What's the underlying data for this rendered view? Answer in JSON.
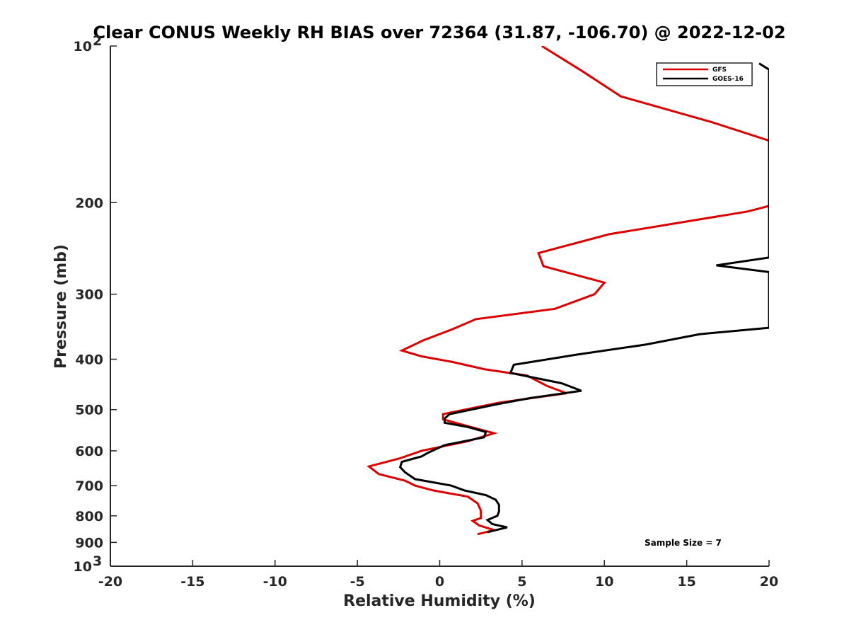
{
  "chart_data": {
    "type": "line",
    "title": "Clear CONUS Weekly RH BIAS over 72364 (31.87, -106.70) @ 2022-12-02",
    "xlabel": "Relative Humidity (%)",
    "ylabel": "Pressure (mb)",
    "xlim": [
      -20,
      20
    ],
    "ylim": [
      100,
      1000
    ],
    "y_scale": "log",
    "y_reversed": true,
    "x_ticks": [
      "-20",
      "-15",
      "-10",
      "-5",
      "0",
      "5",
      "10",
      "15",
      "20"
    ],
    "y_ticks": [
      {
        "value": 100,
        "base": "10",
        "exp": "2"
      },
      {
        "value": 200,
        "label": "200"
      },
      {
        "value": 300,
        "label": "300"
      },
      {
        "value": 400,
        "label": "400"
      },
      {
        "value": 500,
        "label": "500"
      },
      {
        "value": 600,
        "label": "600"
      },
      {
        "value": 700,
        "label": "700"
      },
      {
        "value": 800,
        "label": "800"
      },
      {
        "value": 900,
        "label": "900"
      },
      {
        "value": 1000,
        "base": "10",
        "exp": "3"
      }
    ],
    "legend_position": "top-right",
    "grid": false,
    "annotation": "Sample Size = 7",
    "series": [
      {
        "name": "GFS",
        "color": "#dd0000",
        "points": [
          [
            6.2,
            100
          ],
          [
            8.7,
            112
          ],
          [
            11.0,
            125
          ],
          [
            16.5,
            140
          ],
          [
            20.0,
            152
          ],
          [
            20.0,
            203
          ],
          [
            18.7,
            208
          ],
          [
            10.3,
            230
          ],
          [
            6.0,
            250
          ],
          [
            6.3,
            265
          ],
          [
            10.0,
            285
          ],
          [
            9.4,
            300
          ],
          [
            7.0,
            320
          ],
          [
            2.2,
            335
          ],
          [
            0.8,
            350
          ],
          [
            -1.0,
            368
          ],
          [
            -2.3,
            385
          ],
          [
            -1.1,
            395
          ],
          [
            0.8,
            405
          ],
          [
            2.7,
            418
          ],
          [
            5.3,
            430
          ],
          [
            6.5,
            450
          ],
          [
            7.7,
            465
          ],
          [
            3.6,
            485
          ],
          [
            0.2,
            510
          ],
          [
            0.2,
            522
          ],
          [
            1.7,
            538
          ],
          [
            3.3,
            555
          ],
          [
            1.7,
            575
          ],
          [
            -1.1,
            600
          ],
          [
            -2.4,
            620
          ],
          [
            -4.3,
            643
          ],
          [
            -3.7,
            665
          ],
          [
            -2.1,
            685
          ],
          [
            -1.5,
            700
          ],
          [
            -0.4,
            715
          ],
          [
            1.7,
            735
          ],
          [
            2.3,
            757
          ],
          [
            2.5,
            782
          ],
          [
            2.5,
            808
          ],
          [
            2.0,
            818
          ],
          [
            2.4,
            835
          ],
          [
            3.3,
            852
          ],
          [
            2.3,
            868
          ]
        ]
      },
      {
        "name": "GOES-16",
        "color": "#000000",
        "points": [
          [
            19.4,
            108
          ],
          [
            20.0,
            111
          ],
          [
            20.0,
            255
          ],
          [
            16.8,
            264
          ],
          [
            20.0,
            272
          ],
          [
            20.0,
            348
          ],
          [
            15.8,
            358
          ],
          [
            12.5,
            375
          ],
          [
            8.3,
            392
          ],
          [
            4.5,
            410
          ],
          [
            4.3,
            425
          ],
          [
            7.4,
            445
          ],
          [
            8.6,
            460
          ],
          [
            5.5,
            475
          ],
          [
            3.5,
            488
          ],
          [
            0.6,
            510
          ],
          [
            0.3,
            520
          ],
          [
            0.3,
            530
          ],
          [
            1.7,
            540
          ],
          [
            2.8,
            552
          ],
          [
            2.7,
            565
          ],
          [
            0.3,
            585
          ],
          [
            -0.7,
            605
          ],
          [
            -1.1,
            615
          ],
          [
            -2.3,
            630
          ],
          [
            -2.4,
            645
          ],
          [
            -2.1,
            660
          ],
          [
            -1.5,
            680
          ],
          [
            0.7,
            700
          ],
          [
            1.5,
            715
          ],
          [
            2.8,
            730
          ],
          [
            3.4,
            745
          ],
          [
            3.6,
            762
          ],
          [
            3.6,
            785
          ],
          [
            3.5,
            800
          ],
          [
            2.9,
            815
          ],
          [
            3.2,
            830
          ],
          [
            4.1,
            842
          ],
          [
            2.9,
            860
          ]
        ]
      }
    ]
  }
}
